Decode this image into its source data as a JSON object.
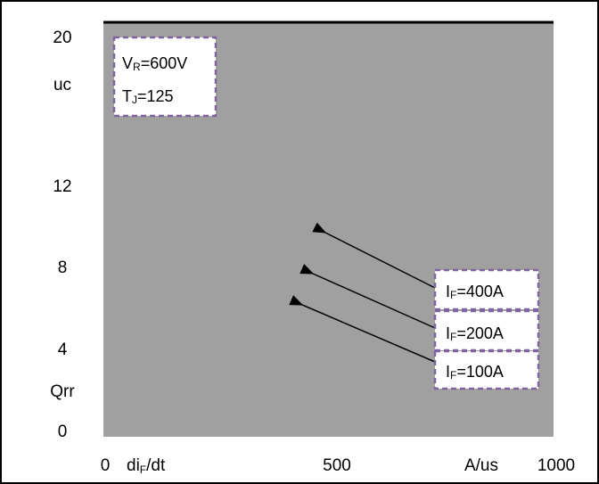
{
  "chart_data": {
    "type": "line",
    "title": "",
    "plot_background": "#a0a0a0",
    "y_ticks": [
      "20",
      "12",
      "8",
      "4",
      "0"
    ],
    "y_unit": "uc",
    "y_label": "Qrr",
    "x_ticks": [
      "0",
      "500",
      "1000"
    ],
    "x_label_main": "di",
    "x_label_sub": "F",
    "x_label_rest": "/dt",
    "x_unit": "A/us",
    "ylim": [
      0,
      20
    ],
    "xlim": [
      0,
      1000
    ],
    "conditions": [
      {
        "main": "V",
        "sub": "R",
        "rest": "=600V"
      },
      {
        "main": "T",
        "sub": "J",
        "rest": "=125"
      }
    ],
    "series": [
      {
        "main": "I",
        "sub": "F",
        "rest": "=400A"
      },
      {
        "main": "I",
        "sub": "F",
        "rest": "=200A"
      },
      {
        "main": "I",
        "sub": "F",
        "rest": "=100A"
      }
    ],
    "box_border_color": "#8064a2",
    "grid": false
  }
}
